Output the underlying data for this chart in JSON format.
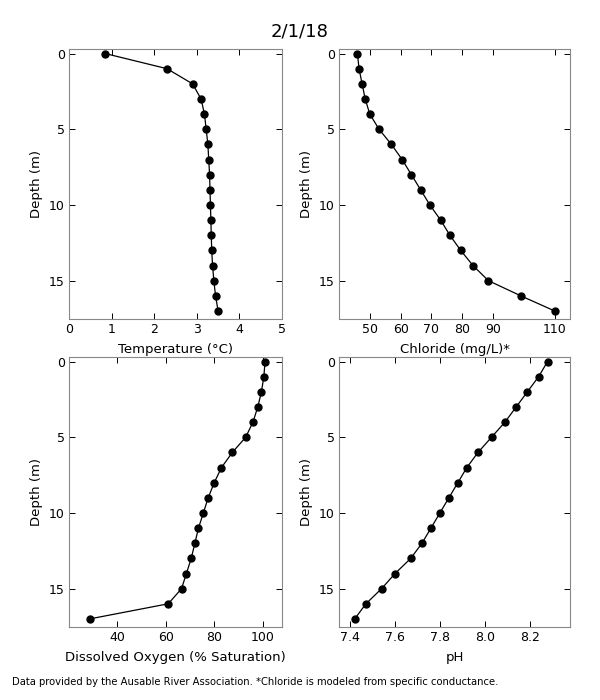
{
  "title": "2/1/18",
  "footnote": "Data provided by the Ausable River Association. *Chloride is modeled from specific conductance.",
  "depth": [
    0,
    1,
    2,
    3,
    4,
    5,
    6,
    7,
    8,
    9,
    10,
    11,
    12,
    13,
    14,
    15,
    16,
    17
  ],
  "temperature": [
    0.85,
    2.3,
    2.9,
    3.1,
    3.18,
    3.22,
    3.26,
    3.28,
    3.3,
    3.31,
    3.32,
    3.33,
    3.34,
    3.35,
    3.37,
    3.4,
    3.44,
    3.5
  ],
  "chloride": [
    46.0,
    46.5,
    47.5,
    48.5,
    50.0,
    53.0,
    57.0,
    60.5,
    63.5,
    66.5,
    69.5,
    73.0,
    76.0,
    79.5,
    83.5,
    88.5,
    99.0,
    110.0
  ],
  "do_sat": [
    101.0,
    100.5,
    99.5,
    98.0,
    96.0,
    93.0,
    87.5,
    83.0,
    80.0,
    77.5,
    75.5,
    73.5,
    72.0,
    70.5,
    68.5,
    66.5,
    61.0,
    28.5
  ],
  "ph": [
    8.28,
    8.24,
    8.19,
    8.14,
    8.09,
    8.03,
    7.97,
    7.92,
    7.88,
    7.84,
    7.8,
    7.76,
    7.72,
    7.67,
    7.6,
    7.54,
    7.47,
    7.42
  ],
  "temp_xlim": [
    0,
    5
  ],
  "temp_xticks": [
    0,
    1,
    2,
    3,
    4,
    5
  ],
  "chloride_xlim": [
    40,
    115
  ],
  "chloride_xticks": [
    50,
    60,
    70,
    80,
    90,
    110
  ],
  "do_xlim": [
    20,
    108
  ],
  "do_xticks": [
    40,
    60,
    80,
    100
  ],
  "ph_xlim": [
    7.35,
    8.38
  ],
  "ph_xticks": [
    7.4,
    7.6,
    7.8,
    8.0,
    8.2
  ],
  "depth_lim": [
    17.5,
    -0.3
  ],
  "depth_ticks": [
    0,
    5,
    10,
    15
  ],
  "ylabel": "Depth (m)",
  "temp_xlabel": "Temperature (°C)",
  "chloride_xlabel": "Chloride (mg/L)*",
  "do_xlabel": "Dissolved Oxygen (% Saturation)",
  "ph_xlabel": "pH",
  "line_color": "black",
  "marker": "o",
  "markersize": 5,
  "linewidth": 0.9,
  "background_color": "white"
}
